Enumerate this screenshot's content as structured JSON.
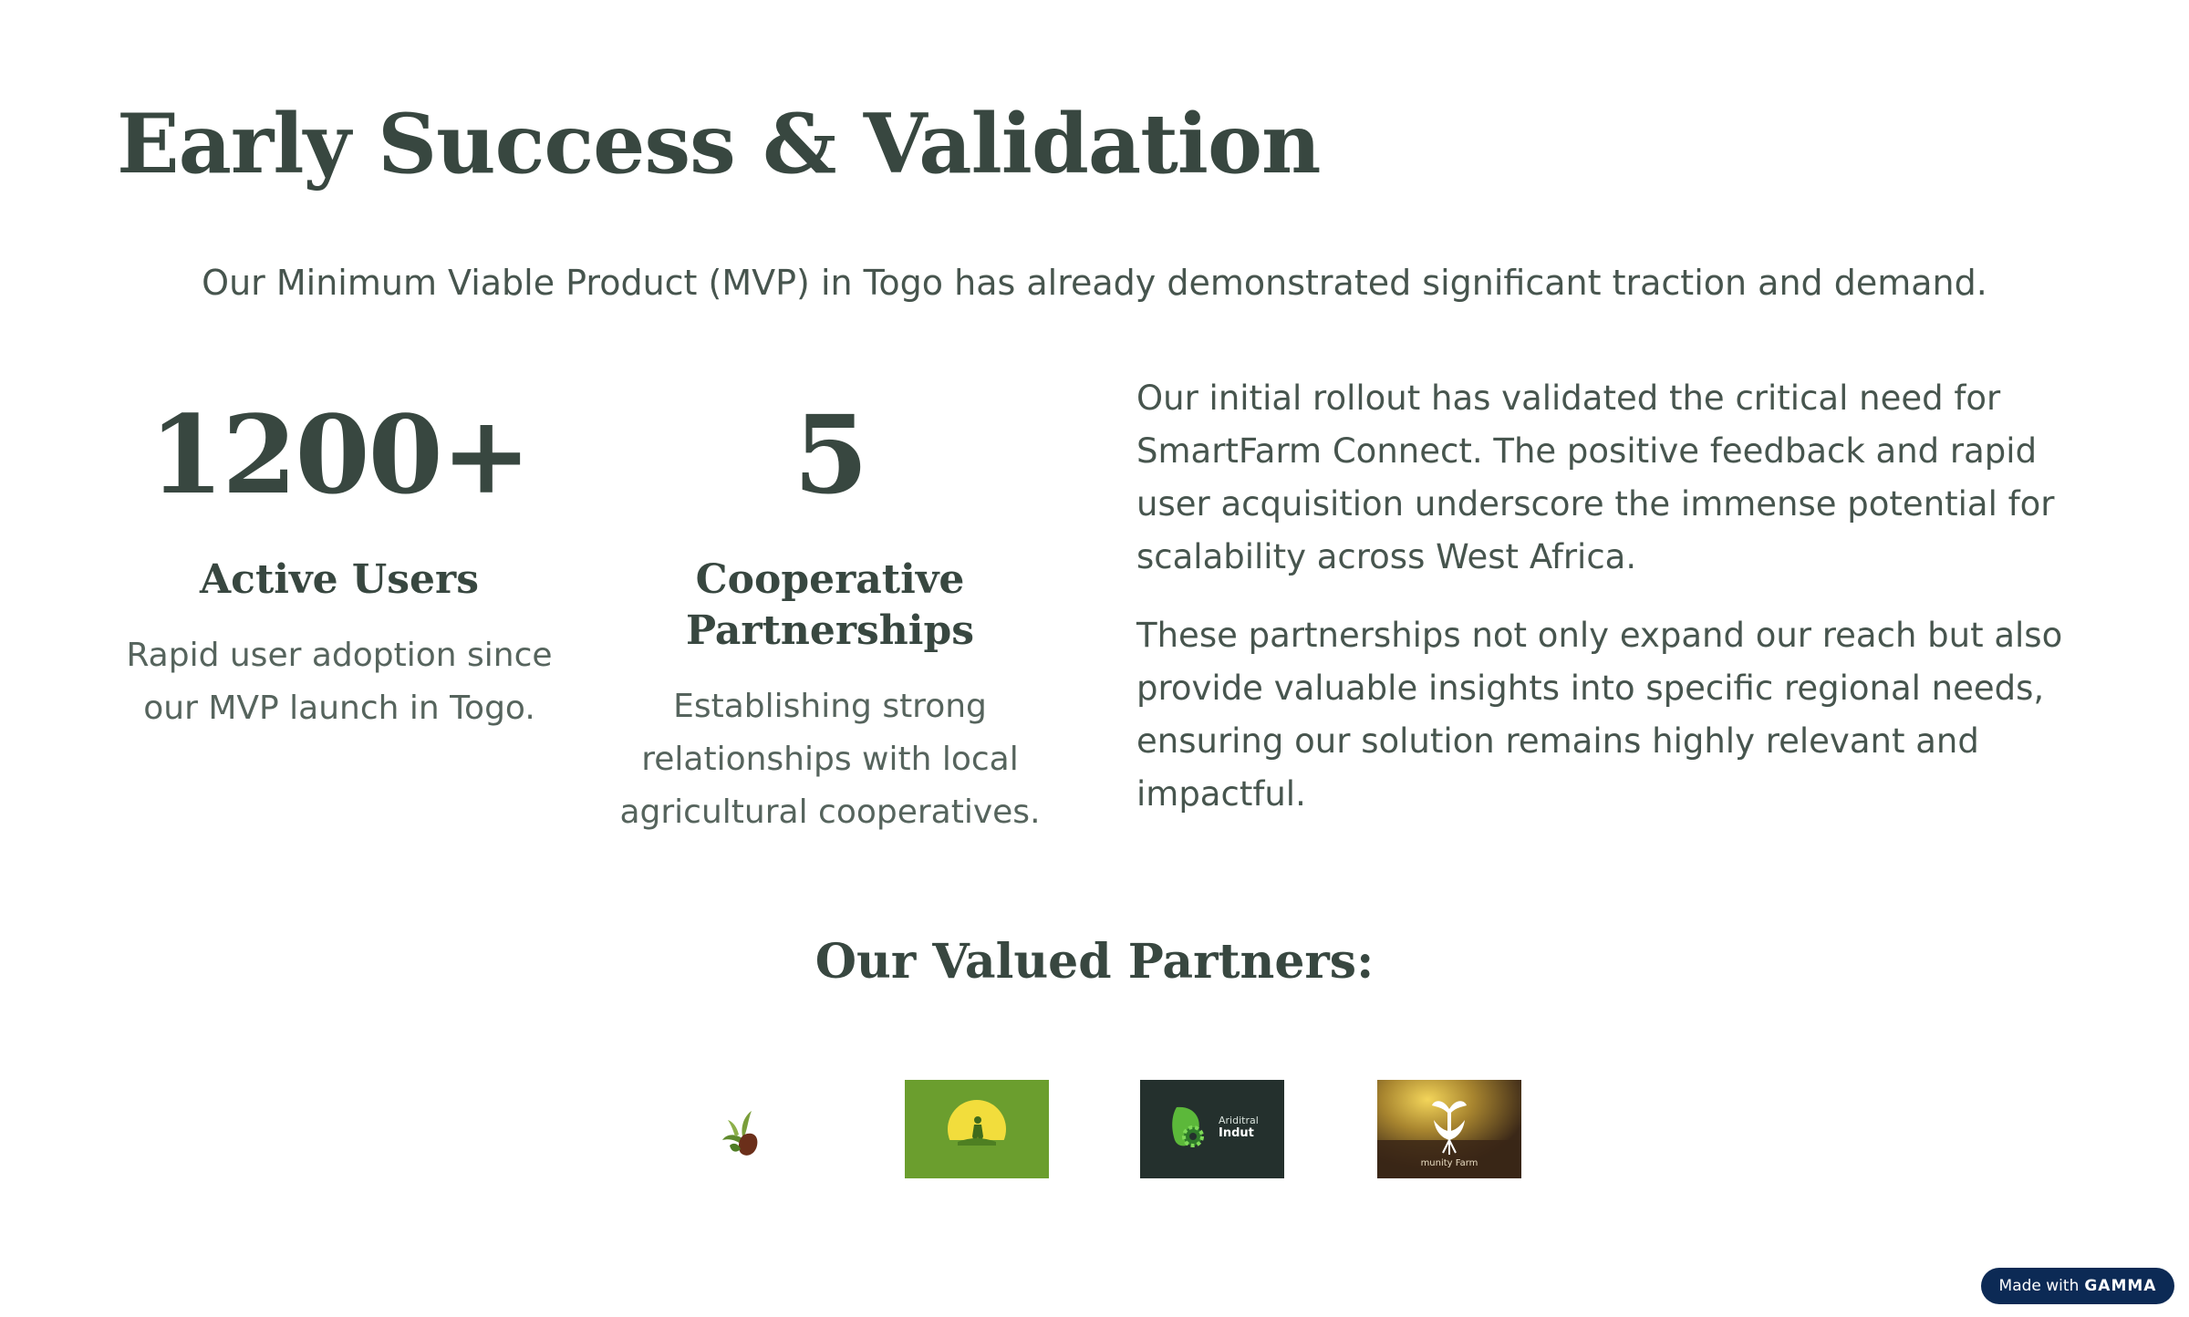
{
  "page": {
    "title": "Early Success & Validation",
    "subtitle": "Our Minimum Viable Product (MVP) in Togo has already demonstrated significant traction and demand."
  },
  "stats": [
    {
      "value": "1200+",
      "label": "Active Users",
      "description": "Rapid user adoption since our MVP launch in Togo."
    },
    {
      "value": "5",
      "label": "Cooperative Partnerships",
      "description": "Establishing strong relationships with local agricultural cooperatives."
    }
  ],
  "narrative": {
    "paragraph1": "Our initial rollout has validated the critical need for SmartFarm Connect. The positive feedback and rapid user acquisition underscore the immense potential for scalability across West Africa.",
    "paragraph2": "These partnerships not only expand our reach but also provide valuable insights into specific regional needs, ensuring our solution remains highly relevant and impactful."
  },
  "partners": {
    "heading": "Our Valued Partners:",
    "logos": [
      {
        "icon": "sprout-leaf-logo-icon"
      },
      {
        "icon": "farmer-sunrise-logo-icon"
      },
      {
        "icon": "gear-leaf-logo-icon",
        "text_line1": "Ariditral",
        "text_line2": "Indut"
      },
      {
        "icon": "hands-plant-logo-icon",
        "text": "munity Farm"
      }
    ]
  },
  "badge": {
    "prefix": "Made with",
    "brand": "GAMMA"
  },
  "colors": {
    "heading": "#384740",
    "body": "#47554e",
    "badge_bg": "#0c2a55",
    "logo2_bg": "#6b9e2e",
    "logo3_bg": "#24302d"
  }
}
